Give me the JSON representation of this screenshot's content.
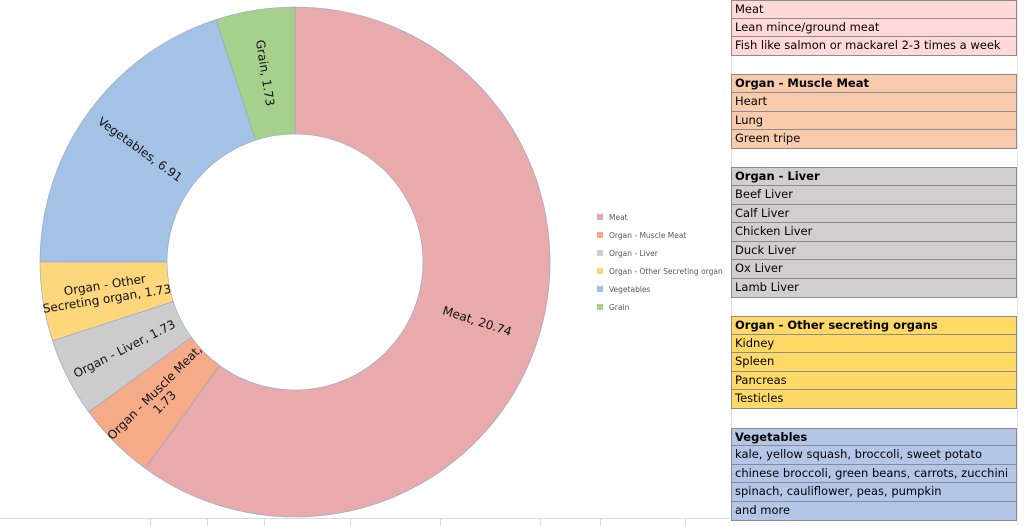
{
  "chart_data": {
    "type": "pie",
    "donut": true,
    "legend_position": "right",
    "slices": [
      {
        "label": "Meat",
        "value": 20.74,
        "color": "#e8aaaa"
      },
      {
        "label": "Organ - Muscle Meat",
        "value": 1.73,
        "color": "#f5ab88"
      },
      {
        "label": "Organ - Liver",
        "value": 1.73,
        "color": "#cccccc"
      },
      {
        "label": "Organ - Other Secreting organ",
        "value": 1.73,
        "color": "#fed67c"
      },
      {
        "label": "Vegetables",
        "value": 6.91,
        "color": "#a4c2e6"
      },
      {
        "label": "Grain",
        "value": 1.73,
        "color": "#a8d08d"
      }
    ],
    "slice_labels": [
      [
        "Meat, 20.74"
      ],
      [
        "Organ - Muscle Meat,",
        "1.73"
      ],
      [
        "Organ - Liver, 1.73"
      ],
      [
        "Organ - Other",
        "Secreting organ, 1.73"
      ],
      [
        "Vegetables, 6.91"
      ],
      [
        "Grain, 1.73"
      ]
    ]
  },
  "table": {
    "groups": [
      {
        "color": "#ffd9d9",
        "header": null,
        "rows": [
          "Meat",
          "Lean mince/ground meat",
          "Fish like salmon or mackarel 2-3 times a week"
        ]
      },
      {
        "color": "#f8cbad",
        "header": "Organ - Muscle Meat",
        "rows": [
          "Heart",
          "Lung",
          "Green tripe"
        ]
      },
      {
        "color": "#d0cece",
        "header": "Organ - Liver",
        "rows": [
          "Beef Liver",
          "Calf Liver",
          "Chicken Liver",
          "Duck Liver",
          "Ox Liver",
          "Lamb Liver"
        ]
      },
      {
        "color": "#ffd966",
        "header": "Organ - Other secreting organs",
        "rows": [
          "Kidney",
          "Spleen",
          "Pancreas",
          "Testicles"
        ]
      },
      {
        "color": "#b4c6e7",
        "header": "Vegetables",
        "rows": [
          "kale, yellow squash, broccoli, sweet potato",
          "chinese broccoli, green beans, carrots, zucchini",
          "spinach, cauliflower, peas, pumpkin",
          "and more"
        ]
      }
    ]
  }
}
